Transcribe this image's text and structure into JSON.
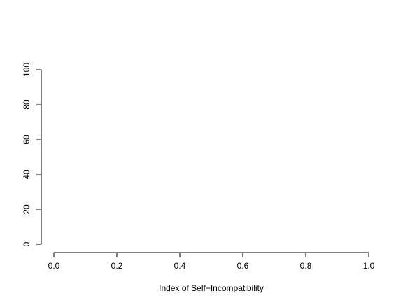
{
  "chart_data": {
    "type": "scatter",
    "title": "",
    "xlabel": "Index of Self−Incompatibility",
    "ylabel": "",
    "xlim": [
      0.0,
      1.0
    ],
    "ylim": [
      0,
      100
    ],
    "x_ticks": [
      0.0,
      0.2,
      0.4,
      0.6,
      0.8,
      1.0
    ],
    "x_tick_labels": [
      "0.0",
      "0.2",
      "0.4",
      "0.6",
      "0.8",
      "1.0"
    ],
    "y_ticks": [
      0,
      20,
      40,
      60,
      80,
      100
    ],
    "y_tick_labels": [
      "0",
      "20",
      "40",
      "60",
      "80",
      "100"
    ],
    "series": [],
    "grid": false,
    "legend": "none"
  }
}
